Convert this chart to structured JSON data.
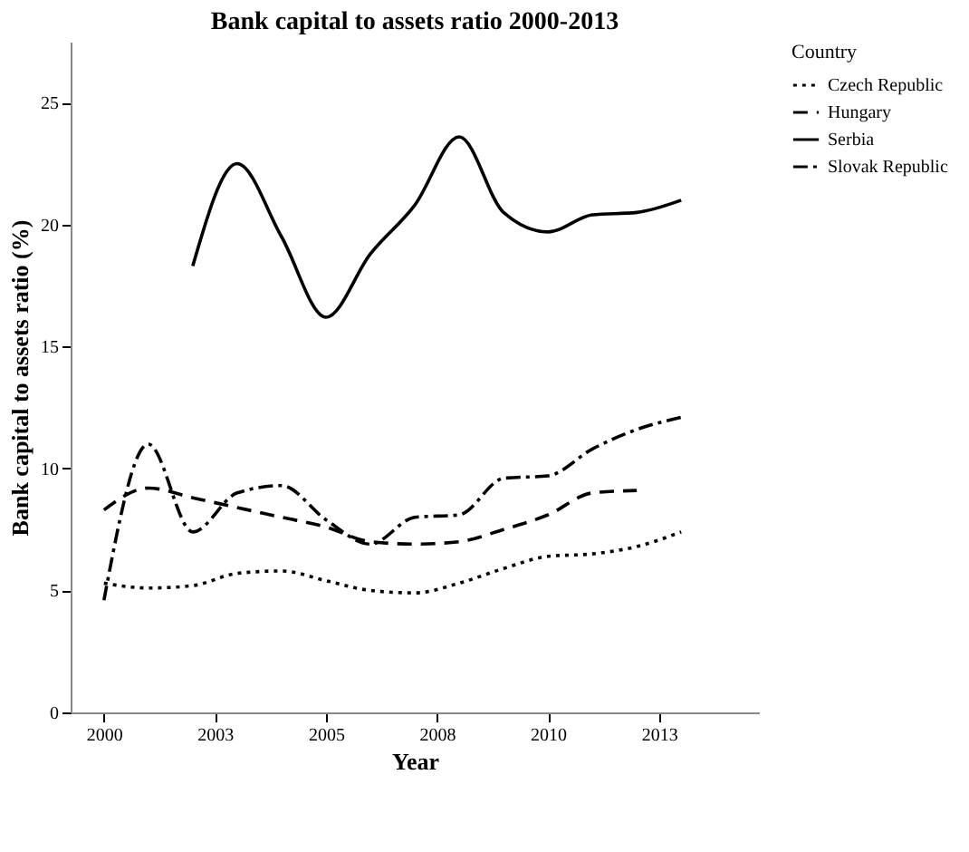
{
  "chart_data": {
    "type": "line",
    "title": "Bank capital to assets ratio 2000-2013",
    "xlabel": "Year",
    "ylabel": "Bank capital to assets ratio (%)",
    "legend_title": "Country",
    "legend": "top right",
    "grid": false,
    "marker": "none",
    "xlim": [
      1999.25,
      2014.75
    ],
    "xticks": [
      {
        "value": 2000,
        "label": "2000"
      },
      {
        "value": 2002.5,
        "label": "2003"
      },
      {
        "value": 2005,
        "label": "2005"
      },
      {
        "value": 2007.5,
        "label": "2008"
      },
      {
        "value": 2010,
        "label": "2010"
      },
      {
        "value": 2012.5,
        "label": "2013"
      }
    ],
    "ylim": [
      0,
      27.5
    ],
    "yticks": [
      0,
      5,
      10,
      15,
      20,
      25
    ],
    "series": [
      {
        "name": "Czech Republic",
        "color": "#000000",
        "line_style": "dotted",
        "x": [
          2000,
          2001,
          2002,
          2003,
          2004,
          2005,
          2006,
          2007,
          2008,
          2009,
          2010,
          2011,
          2012,
          2013
        ],
        "values": [
          5.3,
          5.1,
          5.2,
          5.7,
          5.8,
          5.4,
          5.0,
          4.9,
          5.3,
          5.9,
          6.4,
          6.5,
          6.8,
          7.4
        ]
      },
      {
        "name": "Hungary",
        "color": "#000000",
        "line_style": "dashed",
        "x": [
          2000,
          2001,
          2002,
          2003,
          2004,
          2005,
          2006,
          2007,
          2008,
          2009,
          2010,
          2011,
          2012
        ],
        "values": [
          8.3,
          9.2,
          8.8,
          8.4,
          8.0,
          7.6,
          7.0,
          6.9,
          7.0,
          7.5,
          8.1,
          9.0,
          9.1
        ]
      },
      {
        "name": "Serbia",
        "color": "#000000",
        "line_style": "solid",
        "x": [
          2002,
          2003,
          2004,
          2005,
          2006,
          2007,
          2008,
          2009,
          2010,
          2011,
          2012,
          2013
        ],
        "values": [
          18.3,
          22.5,
          19.5,
          16.2,
          18.8,
          20.8,
          23.6,
          20.5,
          19.7,
          20.4,
          20.5,
          21.0
        ]
      },
      {
        "name": "Slovak Republic",
        "color": "#000000",
        "line_style": "dashdot",
        "x": [
          2000,
          2001,
          2002,
          2003,
          2004,
          2005,
          2006,
          2007,
          2008,
          2009,
          2010,
          2011,
          2012,
          2013
        ],
        "values": [
          4.6,
          11.0,
          7.4,
          9.0,
          9.3,
          7.9,
          6.9,
          8.0,
          8.1,
          9.6,
          9.7,
          10.8,
          11.6,
          12.1
        ]
      }
    ]
  }
}
